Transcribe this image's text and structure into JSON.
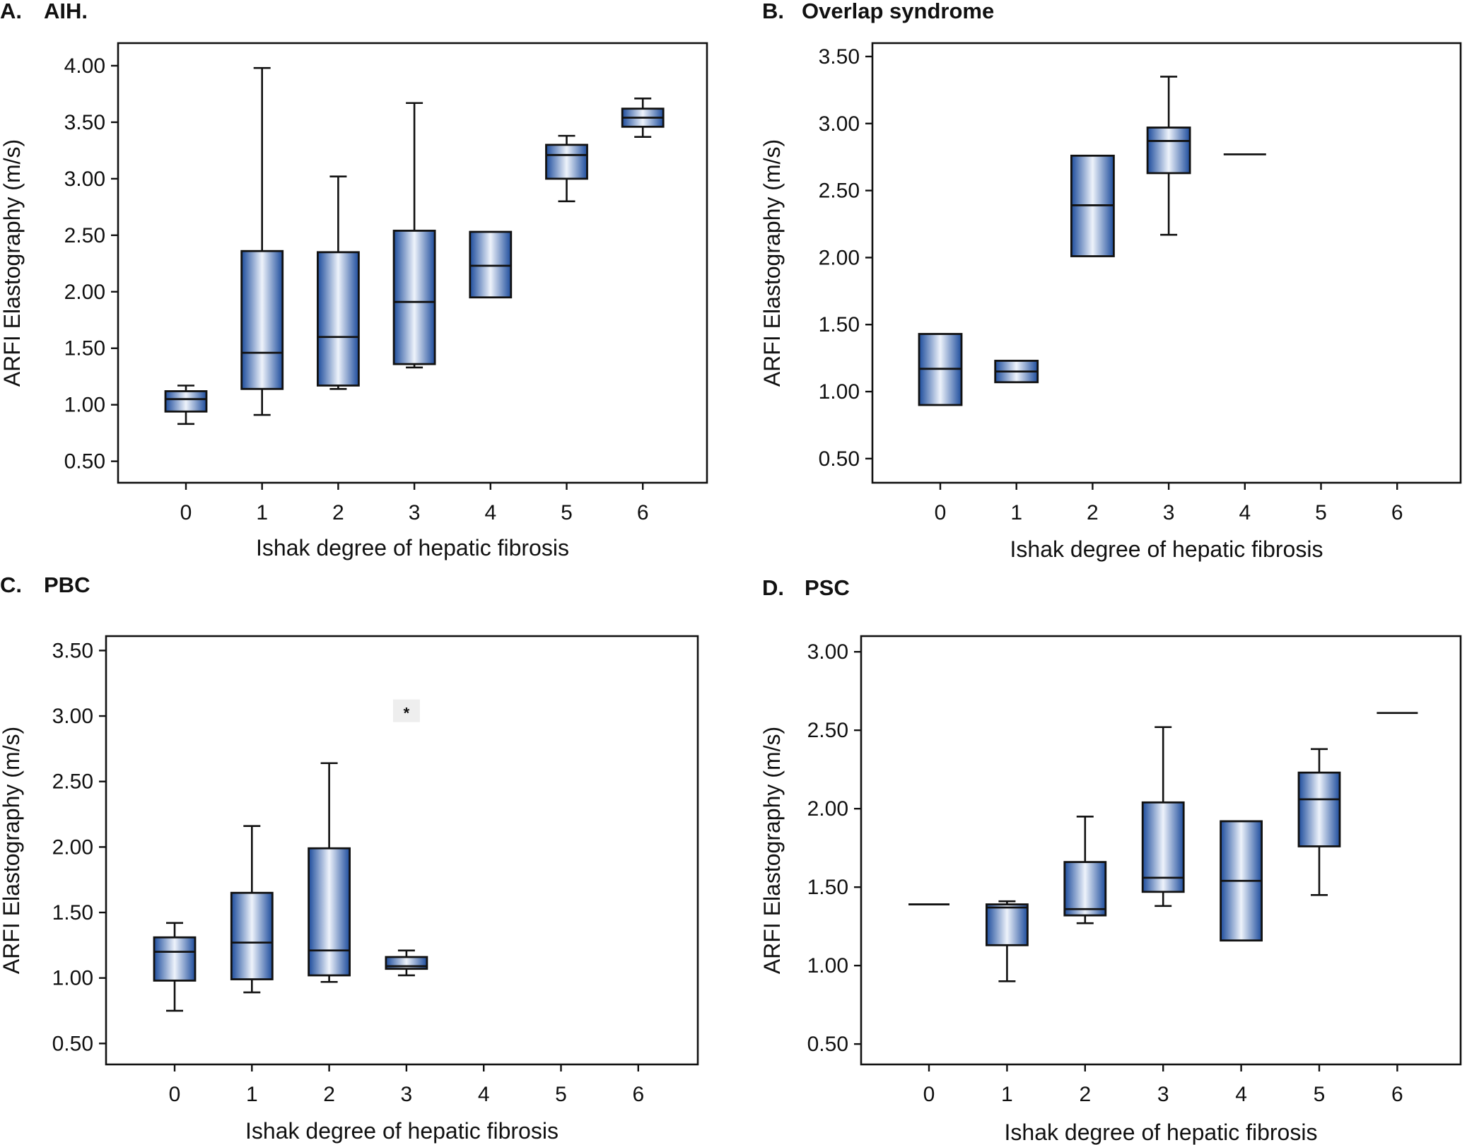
{
  "colors": {
    "box_dark": "#1f4fa3",
    "box_light": "#eef3fb",
    "ink": "#111111",
    "outlier_bg": "#eeeeee"
  },
  "chart_data": [
    {
      "type": "box",
      "panel": "A.",
      "title": "AIH.",
      "xlabel": "Ishak degree of hepatic fibrosis",
      "ylabel": "ARFI Elastography (m/s)",
      "categories": [
        "0",
        "1",
        "2",
        "3",
        "4",
        "5",
        "6"
      ],
      "yticks": [
        "0.50",
        "1.00",
        "1.50",
        "2.00",
        "2.50",
        "3.00",
        "3.50",
        "4.00"
      ],
      "ylim": [
        0.31,
        4.2
      ],
      "boxes": [
        {
          "category": "0",
          "whisker_low": 0.83,
          "q1": 0.94,
          "median": 1.05,
          "q3": 1.12,
          "whisker_high": 1.17
        },
        {
          "category": "1",
          "whisker_low": 0.91,
          "q1": 1.14,
          "median": 1.46,
          "q3": 2.36,
          "whisker_high": 3.98
        },
        {
          "category": "2",
          "whisker_low": 1.14,
          "q1": 1.17,
          "median": 1.6,
          "q3": 2.35,
          "whisker_high": 3.02
        },
        {
          "category": "3",
          "whisker_low": 1.33,
          "q1": 1.36,
          "median": 1.91,
          "q3": 2.54,
          "whisker_high": 3.67
        },
        {
          "category": "4",
          "whisker_low": 1.95,
          "q1": 1.95,
          "median": 2.23,
          "q3": 2.53,
          "whisker_high": 2.53
        },
        {
          "category": "5",
          "whisker_low": 2.8,
          "q1": 3.0,
          "median": 3.21,
          "q3": 3.3,
          "whisker_high": 3.38
        },
        {
          "category": "6",
          "whisker_low": 3.37,
          "q1": 3.46,
          "median": 3.54,
          "q3": 3.62,
          "whisker_high": 3.71
        }
      ],
      "outliers": []
    },
    {
      "type": "box",
      "panel": "B.",
      "title": "Overlap   syndrome",
      "xlabel": "Ishak degree of hepatic fibrosis",
      "ylabel": "ARFI Elastography (m/s)",
      "categories": [
        "0",
        "1",
        "2",
        "3",
        "4",
        "5",
        "6"
      ],
      "yticks": [
        "0.50",
        "1.00",
        "1.50",
        "2.00",
        "2.50",
        "3.00",
        "3.50"
      ],
      "ylim": [
        0.32,
        3.6
      ],
      "boxes": [
        {
          "category": "0",
          "whisker_low": 0.9,
          "q1": 0.9,
          "median": 1.17,
          "q3": 1.43,
          "whisker_high": 1.43
        },
        {
          "category": "1",
          "whisker_low": 1.07,
          "q1": 1.07,
          "median": 1.15,
          "q3": 1.23,
          "whisker_high": 1.23
        },
        {
          "category": "2",
          "whisker_low": 2.01,
          "q1": 2.01,
          "median": 2.39,
          "q3": 2.76,
          "whisker_high": 2.76
        },
        {
          "category": "3",
          "whisker_low": 2.17,
          "q1": 2.63,
          "median": 2.87,
          "q3": 2.97,
          "whisker_high": 3.35
        },
        {
          "category": "4",
          "whisker_low": 2.77,
          "q1": 2.77,
          "median": 2.77,
          "q3": 2.77,
          "whisker_high": 2.77
        }
      ],
      "outliers": []
    },
    {
      "type": "box",
      "panel": "C.",
      "title": "PBC",
      "xlabel": "Ishak degree of hepatic fibrosis",
      "ylabel": "ARFI Elastography (m/s)",
      "categories": [
        "0",
        "1",
        "2",
        "3",
        "4",
        "5",
        "6"
      ],
      "yticks": [
        "0.50",
        "1.00",
        "1.50",
        "2.00",
        "2.50",
        "3.00",
        "3.50"
      ],
      "ylim": [
        0.34,
        3.61
      ],
      "boxes": [
        {
          "category": "0",
          "whisker_low": 0.75,
          "q1": 0.98,
          "median": 1.2,
          "q3": 1.31,
          "whisker_high": 1.42
        },
        {
          "category": "1",
          "whisker_low": 0.89,
          "q1": 0.99,
          "median": 1.27,
          "q3": 1.65,
          "whisker_high": 2.16
        },
        {
          "category": "2",
          "whisker_low": 0.97,
          "q1": 1.02,
          "median": 1.21,
          "q3": 1.99,
          "whisker_high": 2.64
        },
        {
          "category": "3",
          "whisker_low": 1.02,
          "q1": 1.07,
          "median": 1.09,
          "q3": 1.16,
          "whisker_high": 1.21
        }
      ],
      "outliers": [
        {
          "category": "3",
          "value": 3.04,
          "label": "*"
        }
      ]
    },
    {
      "type": "box",
      "panel": "D.",
      "title": "PSC",
      "xlabel": "Ishak degree of hepatic fibrosis",
      "ylabel": "ARFI Elastography (m/s)",
      "categories": [
        "0",
        "1",
        "2",
        "3",
        "4",
        "5",
        "6"
      ],
      "yticks": [
        "0.50",
        "1.00",
        "1.50",
        "2.00",
        "2.50",
        "3.00"
      ],
      "ylim": [
        0.37,
        3.1
      ],
      "boxes": [
        {
          "category": "0",
          "whisker_low": 1.39,
          "q1": 1.39,
          "median": 1.39,
          "q3": 1.39,
          "whisker_high": 1.39
        },
        {
          "category": "1",
          "whisker_low": 0.9,
          "q1": 1.13,
          "median": 1.37,
          "q3": 1.39,
          "whisker_high": 1.41
        },
        {
          "category": "2",
          "whisker_low": 1.27,
          "q1": 1.32,
          "median": 1.36,
          "q3": 1.66,
          "whisker_high": 1.95
        },
        {
          "category": "3",
          "whisker_low": 1.38,
          "q1": 1.47,
          "median": 1.56,
          "q3": 2.04,
          "whisker_high": 2.52
        },
        {
          "category": "4",
          "whisker_low": 1.16,
          "q1": 1.16,
          "median": 1.54,
          "q3": 1.92,
          "whisker_high": 1.92
        },
        {
          "category": "5",
          "whisker_low": 1.45,
          "q1": 1.76,
          "median": 2.06,
          "q3": 2.23,
          "whisker_high": 2.38
        },
        {
          "category": "6",
          "whisker_low": 2.61,
          "q1": 2.61,
          "median": 2.61,
          "q3": 2.61,
          "whisker_high": 2.61
        }
      ],
      "outliers": []
    }
  ]
}
